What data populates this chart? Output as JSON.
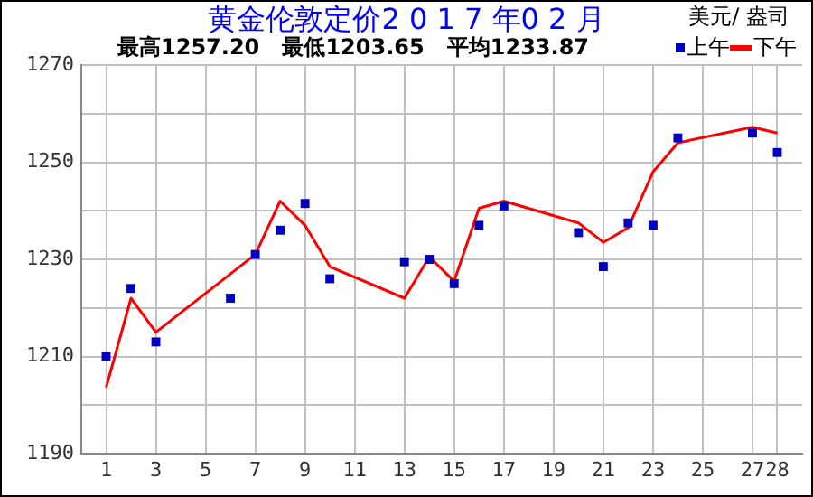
{
  "chart_data": {
    "type": "line",
    "title": "黄金伦敦定价2 0 1 7 年0 2 月",
    "subtitle": "最高1257.20   最低1203.65   平均1233.87",
    "annotations": [
      "美元/ 盎司"
    ],
    "x": [
      1,
      2,
      3,
      6,
      7,
      8,
      9,
      10,
      13,
      14,
      15,
      16,
      17,
      20,
      21,
      22,
      23,
      24,
      27,
      28
    ],
    "series": [
      {
        "name": "上午",
        "type": "scatter",
        "marker": "square",
        "color": "#0000c0",
        "values": [
          1210,
          1224,
          1213,
          1222,
          1231,
          1236,
          1241.5,
          1226,
          1229.5,
          1230,
          1225,
          1237,
          1241,
          1235.5,
          1228.5,
          1237.5,
          1237,
          1255,
          1256,
          1252
        ]
      },
      {
        "name": "下午",
        "type": "line",
        "marker": "none",
        "color": "#ff0000",
        "values": [
          1203.65,
          1222,
          1215,
          1227,
          1231,
          1242,
          1237,
          1228.5,
          1222,
          1230.5,
          1225.5,
          1240.5,
          1242,
          1237.5,
          1233.5,
          1236.5,
          1248,
          1254,
          1257.2,
          1256
        ]
      }
    ],
    "xlim": [
      0,
      29
    ],
    "xticks": [
      1,
      3,
      5,
      7,
      9,
      11,
      13,
      15,
      17,
      19,
      21,
      23,
      25,
      27,
      28
    ],
    "ylim": [
      1190,
      1270
    ],
    "yticks": [
      1190,
      {
        "value": 1200,
        "label": null
      },
      1210,
      {
        "value": 1220,
        "label": null
      },
      1230,
      {
        "value": 1240,
        "label": null
      },
      1250,
      {
        "value": 1260,
        "label": null
      },
      1270
    ],
    "grid": true,
    "legend": "top right"
  }
}
